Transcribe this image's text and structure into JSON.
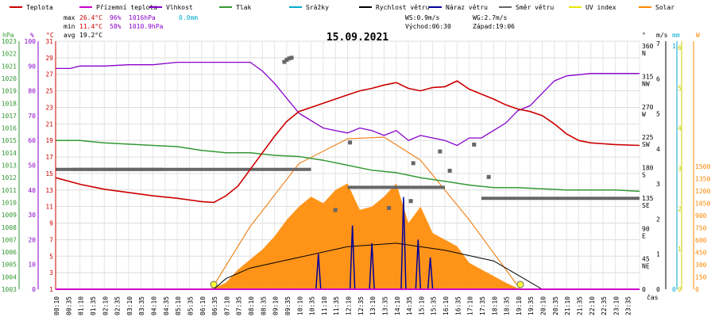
{
  "chart_data": {
    "type": "line",
    "title": "15.09.2021",
    "legend": [
      {
        "label": "Teplota",
        "color": "#cc0000"
      },
      {
        "label": "Přízemní teplota",
        "color": "#cc00cc"
      },
      {
        "label": "Vlhkost",
        "color": "#8800cc"
      },
      {
        "label": "Tlak",
        "color": "#339933"
      },
      {
        "label": "Srážky",
        "color": "#00aacc"
      },
      {
        "label": "Rychlost větru",
        "color": "#000000"
      },
      {
        "label": "Náraz větru",
        "color": "#000099"
      },
      {
        "label": "Směr větru",
        "color": "#666666"
      },
      {
        "label": "UV index",
        "color": "#e6e600"
      },
      {
        "label": "Solar",
        "color": "#ff8800"
      }
    ],
    "stats": {
      "max_label": "max",
      "max_temp": "26.4°C",
      "max_hum": "96%",
      "max_press": "1016hPa",
      "rain": "0.0mm",
      "min_label": "min",
      "min_temp": "11.4°C",
      "min_hum": "58%",
      "min_press": "1010.9hPa",
      "avg_label": "avg",
      "avg_temp": "19.2°C",
      "ws": "WS:0.9m/s",
      "wg": "WG:2.7m/s",
      "sunrise": "Východ:06:30",
      "sunset": "Západ:19:06"
    },
    "axes": {
      "hpa_label": "hPa",
      "pct_label": "%",
      "c_label": "°C",
      "deg_label": "°",
      "ms_label": "m/s",
      "mm_label": "mm",
      "w_label": "W",
      "cas_label": "čas",
      "hpa_ticks": [
        "1023",
        "1022",
        "1021",
        "1020",
        "1019",
        "1018",
        "1017",
        "1016",
        "1015",
        "1014",
        "1013",
        "1012",
        "1011",
        "1010",
        "1009",
        "1008",
        "1007",
        "1006",
        "1005",
        "1004",
        "1003"
      ],
      "pct_ticks": [
        "100",
        "90",
        "80",
        "70",
        "60",
        "50",
        "40",
        "30",
        "20",
        "10",
        "0"
      ],
      "c_ticks": [
        "31",
        "29",
        "27",
        "25",
        "23",
        "21",
        "19",
        "17",
        "15",
        "13",
        "11",
        "9",
        "7",
        "5",
        "3",
        "1"
      ],
      "deg_ticks": [
        "360\nN",
        "315\nNW",
        "270\nW",
        "225\nSW",
        "180\nS",
        "135\nSE",
        "90\nE",
        "45\nNE",
        "0"
      ],
      "ms_ticks": [
        "7",
        "6",
        "5",
        "4",
        "3",
        "2",
        "1",
        "0"
      ],
      "mm_ticks": [
        "1",
        "0"
      ],
      "w_ticks": [
        "1500",
        "1350",
        "1200",
        "1050",
        "900",
        "750",
        "600",
        "450",
        "300",
        "150",
        "0"
      ],
      "uv_ticks": [
        "6",
        "5",
        "4",
        "3",
        "2",
        "1",
        "0"
      ],
      "x_ticks": [
        "00:10",
        "00:35",
        "01:10",
        "01:35",
        "02:10",
        "02:35",
        "03:10",
        "03:35",
        "04:10",
        "04:35",
        "05:10",
        "05:35",
        "06:10",
        "06:35",
        "07:10",
        "07:35",
        "08:10",
        "08:35",
        "09:10",
        "09:35",
        "10:10",
        "10:35",
        "11:10",
        "11:35",
        "12:10",
        "12:35",
        "13:10",
        "13:35",
        "14:10",
        "14:35",
        "15:10",
        "15:35",
        "16:10",
        "16:35",
        "17:10",
        "17:35",
        "18:10",
        "18:35",
        "19:10",
        "19:35",
        "20:10",
        "20:35",
        "21:10",
        "21:35",
        "22:10",
        "22:35",
        "23:10",
        "23:35"
      ]
    },
    "x_range_hours": [
      0,
      24
    ],
    "temp_range": [
      1,
      31
    ],
    "hum_range": [
      0,
      100
    ],
    "press_range": [
      1003,
      1023
    ],
    "dir_range": [
      0,
      360
    ],
    "wind_range": [
      0,
      7
    ],
    "solar_range": [
      0,
      1500
    ],
    "temperature": [
      [
        0,
        14.5
      ],
      [
        1,
        13.7
      ],
      [
        2,
        13.1
      ],
      [
        3,
        12.7
      ],
      [
        4,
        12.3
      ],
      [
        5,
        12.0
      ],
      [
        6,
        11.6
      ],
      [
        6.5,
        11.5
      ],
      [
        7,
        12.3
      ],
      [
        7.5,
        13.5
      ],
      [
        8,
        15.5
      ],
      [
        8.5,
        17.5
      ],
      [
        9,
        19.5
      ],
      [
        9.5,
        21.3
      ],
      [
        10,
        22.5
      ],
      [
        10.5,
        23.0
      ],
      [
        11,
        23.5
      ],
      [
        11.5,
        24.0
      ],
      [
        12,
        24.5
      ],
      [
        12.5,
        25.0
      ],
      [
        13,
        25.3
      ],
      [
        13.5,
        25.7
      ],
      [
        14,
        26.0
      ],
      [
        14.5,
        25.3
      ],
      [
        15,
        25.0
      ],
      [
        15.5,
        25.4
      ],
      [
        16,
        25.5
      ],
      [
        16.5,
        26.2
      ],
      [
        17,
        25.2
      ],
      [
        17.5,
        24.6
      ],
      [
        18,
        24.0
      ],
      [
        18.5,
        23.3
      ],
      [
        19,
        22.8
      ],
      [
        19.5,
        22.5
      ],
      [
        20,
        22.0
      ],
      [
        20.5,
        21.0
      ],
      [
        21,
        19.8
      ],
      [
        21.5,
        19.0
      ],
      [
        22,
        18.7
      ],
      [
        23,
        18.5
      ],
      [
        24,
        18.4
      ]
    ],
    "humidity": [
      [
        0,
        89
      ],
      [
        0.6,
        89
      ],
      [
        1,
        90
      ],
      [
        2,
        90
      ],
      [
        3,
        90.5
      ],
      [
        4,
        90.5
      ],
      [
        5,
        91.5
      ],
      [
        6,
        91.5
      ],
      [
        7,
        91.5
      ],
      [
        8,
        91.5
      ],
      [
        8.5,
        88
      ],
      [
        9,
        83
      ],
      [
        9.5,
        77
      ],
      [
        10,
        71
      ],
      [
        10.5,
        68
      ],
      [
        11,
        65
      ],
      [
        11.5,
        64
      ],
      [
        12,
        63
      ],
      [
        12.5,
        65
      ],
      [
        13,
        64
      ],
      [
        13.5,
        62
      ],
      [
        14,
        64
      ],
      [
        14.5,
        60
      ],
      [
        15,
        62
      ],
      [
        15.5,
        61
      ],
      [
        16,
        60
      ],
      [
        16.5,
        58
      ],
      [
        17,
        61
      ],
      [
        17.5,
        61
      ],
      [
        18,
        64
      ],
      [
        18.5,
        67
      ],
      [
        19,
        72
      ],
      [
        19.5,
        74
      ],
      [
        20,
        79
      ],
      [
        20.5,
        84
      ],
      [
        21,
        86
      ],
      [
        22,
        87
      ],
      [
        23,
        87
      ],
      [
        24,
        87
      ]
    ],
    "pressure": [
      [
        0,
        1015.0
      ],
      [
        1,
        1015.0
      ],
      [
        2,
        1014.8
      ],
      [
        3,
        1014.7
      ],
      [
        4,
        1014.6
      ],
      [
        5,
        1014.5
      ],
      [
        6,
        1014.2
      ],
      [
        7,
        1014.0
      ],
      [
        8,
        1014.0
      ],
      [
        9,
        1013.8
      ],
      [
        10,
        1013.7
      ],
      [
        11,
        1013.4
      ],
      [
        12,
        1013.0
      ],
      [
        13,
        1012.6
      ],
      [
        14,
        1012.4
      ],
      [
        15,
        1012.0
      ],
      [
        16,
        1011.7
      ],
      [
        17,
        1011.4
      ],
      [
        18,
        1011.2
      ],
      [
        19,
        1011.2
      ],
      [
        20,
        1011.1
      ],
      [
        21,
        1011.0
      ],
      [
        22,
        1011.0
      ],
      [
        23,
        1011.0
      ],
      [
        24,
        1010.9
      ]
    ],
    "wind_direction_segments": [
      [
        0,
        4.4,
        174
      ],
      [
        0.7,
        10.5,
        174
      ],
      [
        12,
        16,
        148
      ],
      [
        17.5,
        24,
        132
      ]
    ],
    "wind_direction_points": [
      [
        9.4,
        330
      ],
      [
        9.5,
        333
      ],
      [
        9.6,
        335
      ],
      [
        9.7,
        336
      ],
      [
        12.1,
        213
      ],
      [
        14.7,
        183
      ],
      [
        15.8,
        200
      ],
      [
        17.2,
        210
      ],
      [
        16.2,
        172
      ],
      [
        17.8,
        163
      ],
      [
        11.5,
        115
      ],
      [
        13.7,
        118
      ],
      [
        14.6,
        128
      ]
    ],
    "wind_speed": [
      [
        0,
        0
      ],
      [
        6.5,
        0
      ],
      [
        7,
        0.3
      ],
      [
        8,
        0.6
      ],
      [
        10,
        0.9
      ],
      [
        12,
        1.2
      ],
      [
        14,
        1.3
      ],
      [
        16,
        1.1
      ],
      [
        18,
        0.8
      ],
      [
        19,
        0.4
      ],
      [
        20,
        0
      ],
      [
        24,
        0
      ]
    ],
    "wind_gust_peaks": [
      [
        10.8,
        1.0
      ],
      [
        12.2,
        1.8
      ],
      [
        13.0,
        1.3
      ],
      [
        14.3,
        2.6
      ],
      [
        14.9,
        1.4
      ],
      [
        15.4,
        0.9
      ]
    ],
    "solar": [
      [
        6.4,
        0
      ],
      [
        7,
        40
      ],
      [
        7.5,
        120
      ],
      [
        8,
        180
      ],
      [
        8.5,
        240
      ],
      [
        9,
        320
      ],
      [
        9.5,
        420
      ],
      [
        10,
        500
      ],
      [
        10.5,
        560
      ],
      [
        11,
        520
      ],
      [
        11.5,
        600
      ],
      [
        12,
        640
      ],
      [
        12.5,
        480
      ],
      [
        13,
        500
      ],
      [
        13.5,
        560
      ],
      [
        14,
        640
      ],
      [
        14.5,
        400
      ],
      [
        15,
        500
      ],
      [
        15.5,
        340
      ],
      [
        16,
        300
      ],
      [
        16.5,
        260
      ],
      [
        17,
        160
      ],
      [
        17.5,
        120
      ],
      [
        18,
        80
      ],
      [
        18.5,
        40
      ],
      [
        19.1,
        0
      ]
    ],
    "solar_clear_sky": [
      [
        6.4,
        0
      ],
      [
        8,
        380
      ],
      [
        10,
        760
      ],
      [
        12,
        910
      ],
      [
        13.5,
        920
      ],
      [
        15,
        780
      ],
      [
        17,
        420
      ],
      [
        19.1,
        0
      ]
    ],
    "uv_markers": [
      [
        6.5,
        0
      ],
      [
        19.1,
        0
      ]
    ]
  }
}
